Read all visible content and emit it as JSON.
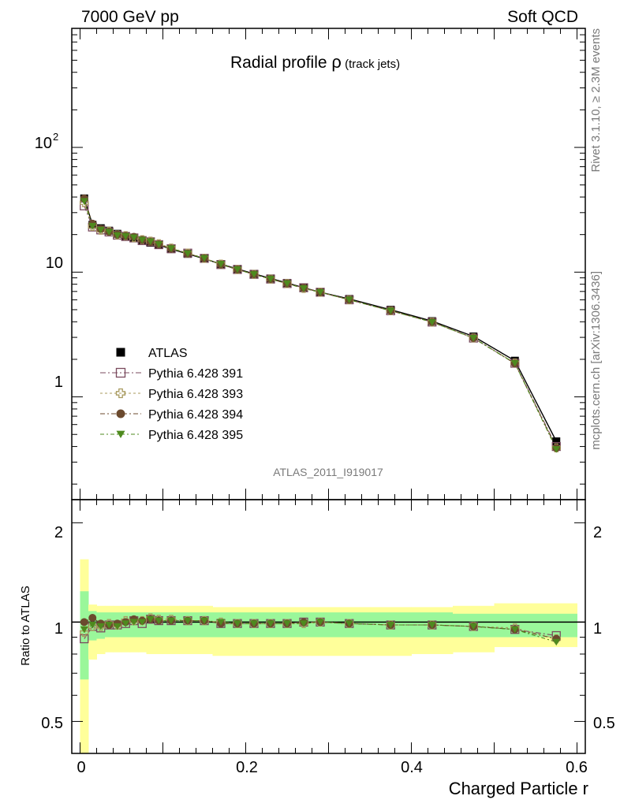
{
  "header": {
    "left": "7000 GeV pp",
    "right": "Soft QCD"
  },
  "side_labels": {
    "rivet": "Rivet 3.1.10, ≥ 2.3M events",
    "mcplots": "mcplots.cern.ch [arXiv:1306.3436]"
  },
  "chart_data": [
    {
      "type": "scatter",
      "panel": "main",
      "title_main": "Radial profile ",
      "title_symbol": "ρ",
      "title_sub": " (track jets)",
      "analysis_id": "ATLAS_2011_I919017",
      "xlim": [
        -0.01,
        0.61
      ],
      "ylim": [
        0.15,
        900
      ],
      "log_y": true,
      "y_tick_labels": {
        "one": "1",
        "ten": "10",
        "hundred_base": "10",
        "hundred_exp": "2"
      },
      "legend_position": "lower-left",
      "x": [
        0.005,
        0.015,
        0.025,
        0.035,
        0.045,
        0.055,
        0.065,
        0.075,
        0.085,
        0.095,
        0.11,
        0.13,
        0.15,
        0.17,
        0.19,
        0.21,
        0.23,
        0.25,
        0.27,
        0.29,
        0.325,
        0.375,
        0.425,
        0.475,
        0.525,
        0.575
      ],
      "series": [
        {
          "name": "ATLAS",
          "color": "#000000",
          "marker": "square-filled",
          "values": [
            39,
            24,
            22.5,
            21.5,
            20.3,
            19.5,
            18.8,
            18.0,
            17.2,
            16.5,
            15.3,
            14.0,
            12.8,
            11.6,
            10.6,
            9.7,
            8.9,
            8.2,
            7.5,
            6.9,
            6.1,
            5.0,
            4.05,
            3.05,
            1.95,
            0.44
          ]
        },
        {
          "name": "Pythia 6.428 391",
          "color": "#7a4a5e",
          "marker": "square-open",
          "values": [
            34,
            23,
            21.8,
            21.0,
            19.8,
            19.3,
            18.8,
            17.9,
            17.5,
            16.6,
            15.4,
            14.2,
            12.9,
            11.5,
            10.5,
            9.6,
            8.8,
            8.1,
            7.5,
            6.9,
            6.0,
            4.9,
            3.98,
            2.96,
            1.86,
            0.4
          ]
        },
        {
          "name": "Pythia 6.428 393",
          "color": "#a89a5e",
          "marker": "cross-open",
          "values": [
            36,
            23.3,
            21.7,
            21.3,
            19.9,
            19.6,
            18.9,
            18.2,
            17.7,
            16.9,
            15.6,
            14.2,
            12.9,
            11.6,
            10.5,
            9.6,
            8.8,
            8.1,
            7.4,
            6.9,
            6.0,
            4.9,
            3.98,
            2.97,
            1.87,
            0.39
          ]
        },
        {
          "name": "Pythia 6.428 394",
          "color": "#6b4a2e",
          "marker": "circle-filled",
          "values": [
            39,
            24.5,
            22.2,
            21.1,
            20.0,
            19.5,
            19.2,
            18.1,
            17.5,
            16.7,
            15.4,
            14.1,
            12.9,
            11.5,
            10.5,
            9.6,
            8.8,
            8.1,
            7.5,
            6.9,
            6.0,
            4.9,
            3.98,
            2.96,
            1.85,
            0.39
          ]
        },
        {
          "name": "Pythia 6.428 395",
          "color": "#4e8a1e",
          "marker": "triangle-down-filled",
          "values": [
            37,
            23.4,
            21.8,
            21.0,
            19.7,
            19.4,
            18.9,
            18.1,
            17.6,
            16.7,
            15.5,
            14.1,
            12.9,
            11.6,
            10.5,
            9.6,
            8.8,
            8.1,
            7.4,
            6.9,
            6.0,
            4.9,
            3.97,
            2.96,
            1.86,
            0.38
          ]
        }
      ]
    },
    {
      "type": "scatter",
      "panel": "ratio",
      "ylabel": "Ratio to ATLAS",
      "xlabel": "Charged Particle r",
      "xlim": [
        -0.01,
        0.61
      ],
      "ylim": [
        0.4,
        2.35
      ],
      "log_y": true,
      "x_tick_labels": [
        "0",
        "0.2",
        "0.4",
        "0.6"
      ],
      "y_tick_labels": [
        "0.5",
        "1",
        "2"
      ],
      "band_edges": [
        0.0,
        0.01,
        0.02,
        0.03,
        0.04,
        0.05,
        0.06,
        0.07,
        0.08,
        0.09,
        0.1,
        0.12,
        0.14,
        0.16,
        0.18,
        0.2,
        0.22,
        0.24,
        0.26,
        0.28,
        0.3,
        0.35,
        0.4,
        0.45,
        0.5,
        0.55,
        0.6
      ],
      "band_green": [
        [
          0.67,
          1.24
        ],
        [
          0.88,
          1.08
        ],
        [
          0.89,
          1.07
        ],
        [
          0.9,
          1.07
        ],
        [
          0.9,
          1.07
        ],
        [
          0.9,
          1.07
        ],
        [
          0.9,
          1.07
        ],
        [
          0.9,
          1.07
        ],
        [
          0.9,
          1.07
        ],
        [
          0.9,
          1.07
        ],
        [
          0.9,
          1.07
        ],
        [
          0.9,
          1.07
        ],
        [
          0.9,
          1.07
        ],
        [
          0.9,
          1.07
        ],
        [
          0.9,
          1.07
        ],
        [
          0.9,
          1.07
        ],
        [
          0.9,
          1.07
        ],
        [
          0.9,
          1.07
        ],
        [
          0.9,
          1.07
        ],
        [
          0.9,
          1.07
        ],
        [
          0.9,
          1.07
        ],
        [
          0.9,
          1.07
        ],
        [
          0.9,
          1.07
        ],
        [
          0.9,
          1.06
        ],
        [
          0.9,
          1.06
        ],
        [
          0.9,
          1.06
        ]
      ],
      "band_yellow": [
        [
          0.4,
          1.55
        ],
        [
          0.77,
          1.13
        ],
        [
          0.8,
          1.12
        ],
        [
          0.81,
          1.12
        ],
        [
          0.81,
          1.12
        ],
        [
          0.81,
          1.12
        ],
        [
          0.81,
          1.12
        ],
        [
          0.81,
          1.12
        ],
        [
          0.8,
          1.12
        ],
        [
          0.8,
          1.12
        ],
        [
          0.8,
          1.12
        ],
        [
          0.8,
          1.12
        ],
        [
          0.8,
          1.12
        ],
        [
          0.79,
          1.11
        ],
        [
          0.79,
          1.11
        ],
        [
          0.79,
          1.11
        ],
        [
          0.79,
          1.11
        ],
        [
          0.79,
          1.11
        ],
        [
          0.79,
          1.11
        ],
        [
          0.79,
          1.11
        ],
        [
          0.79,
          1.11
        ],
        [
          0.79,
          1.11
        ],
        [
          0.8,
          1.11
        ],
        [
          0.81,
          1.12
        ],
        [
          0.84,
          1.14
        ],
        [
          0.84,
          1.14
        ]
      ],
      "series": [
        {
          "name": "ATLAS",
          "color": "#000000",
          "marker": "none",
          "values": [
            1,
            1,
            1,
            1,
            1,
            1,
            1,
            1,
            1,
            1,
            1,
            1,
            1,
            1,
            1,
            1,
            1,
            1,
            1,
            1,
            1,
            1,
            1,
            1,
            1,
            1
          ]
        },
        {
          "name": "Pythia 6.428 391",
          "color": "#7a4a5e",
          "marker": "square-open",
          "values": [
            0.89,
            0.97,
            0.96,
            0.98,
            0.98,
            0.99,
            1.01,
            0.99,
            1.02,
            1.01,
            1.01,
            1.01,
            1.01,
            0.99,
            0.99,
            0.99,
            0.99,
            0.99,
            1.0,
            1.0,
            0.99,
            0.98,
            0.98,
            0.97,
            0.95,
            0.91
          ]
        },
        {
          "name": "Pythia 6.428 393",
          "color": "#a89a5e",
          "marker": "cross-open",
          "values": [
            0.93,
            0.97,
            0.97,
            0.99,
            0.98,
            1.01,
            1.01,
            1.01,
            1.03,
            1.02,
            1.02,
            1.01,
            1.01,
            1.0,
            0.99,
            0.99,
            0.99,
            0.99,
            0.99,
            1.0,
            0.99,
            0.98,
            0.98,
            0.97,
            0.96,
            0.89
          ]
        },
        {
          "name": "Pythia 6.428 394",
          "color": "#6b4a2e",
          "marker": "circle-filled",
          "values": [
            1.0,
            1.03,
            0.99,
            0.98,
            0.99,
            1.0,
            1.02,
            1.01,
            1.02,
            1.01,
            1.01,
            1.01,
            1.01,
            0.99,
            0.99,
            0.99,
            0.99,
            0.99,
            1.0,
            1.0,
            0.99,
            0.98,
            0.98,
            0.97,
            0.95,
            0.89
          ]
        },
        {
          "name": "Pythia 6.428 395",
          "color": "#4e8a1e",
          "marker": "triangle-down-filled",
          "values": [
            0.95,
            0.98,
            0.97,
            0.98,
            0.97,
            0.99,
            1.0,
            1.0,
            1.02,
            1.01,
            1.01,
            1.01,
            1.01,
            1.0,
            0.99,
            0.99,
            0.99,
            0.99,
            0.99,
            1.0,
            0.99,
            0.98,
            0.98,
            0.97,
            0.95,
            0.87
          ]
        }
      ]
    }
  ]
}
